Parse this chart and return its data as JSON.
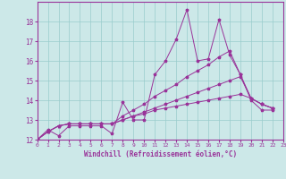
{
  "xlabel": "Windchill (Refroidissement éolien,°C)",
  "bg_color": "#cce8e8",
  "line_color": "#993399",
  "grid_color": "#99cccc",
  "xlim": [
    0,
    23
  ],
  "ylim": [
    12,
    19
  ],
  "yticks": [
    12,
    13,
    14,
    15,
    16,
    17,
    18
  ],
  "xticks": [
    0,
    1,
    2,
    3,
    4,
    5,
    6,
    7,
    8,
    9,
    10,
    11,
    12,
    13,
    14,
    15,
    16,
    17,
    18,
    19,
    20,
    21,
    22,
    23
  ],
  "series": [
    [
      12.0,
      12.5,
      12.2,
      12.7,
      12.7,
      12.7,
      12.7,
      12.3,
      13.9,
      13.0,
      13.0,
      15.3,
      16.0,
      17.1,
      18.6,
      16.0,
      16.1,
      18.1,
      16.3,
      15.3,
      14.0,
      13.5,
      13.5
    ],
    [
      12.0,
      12.4,
      12.7,
      12.8,
      12.8,
      12.8,
      12.8,
      12.8,
      13.2,
      13.5,
      13.8,
      14.2,
      14.5,
      14.8,
      15.2,
      15.5,
      15.8,
      16.2,
      16.5,
      15.3,
      14.1,
      13.8,
      13.6
    ],
    [
      12.0,
      12.4,
      12.7,
      12.8,
      12.8,
      12.8,
      12.8,
      12.8,
      13.0,
      13.2,
      13.4,
      13.6,
      13.8,
      14.0,
      14.2,
      14.4,
      14.6,
      14.8,
      15.0,
      15.2,
      14.1,
      13.8,
      13.6
    ],
    [
      12.0,
      12.4,
      12.7,
      12.8,
      12.8,
      12.8,
      12.8,
      12.8,
      13.0,
      13.2,
      13.3,
      13.5,
      13.6,
      13.7,
      13.8,
      13.9,
      14.0,
      14.1,
      14.2,
      14.3,
      14.1,
      13.8,
      13.6
    ]
  ]
}
